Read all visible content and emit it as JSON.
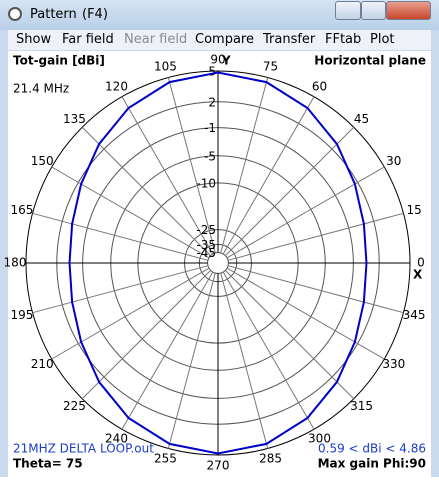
{
  "window": {
    "title": "Pattern",
    "shortcut": "(F4)",
    "menu": [
      {
        "label": "Show",
        "enabled": true
      },
      {
        "label": "Far field",
        "enabled": true
      },
      {
        "label": "Near field",
        "enabled": false
      },
      {
        "label": "Compare",
        "enabled": true
      },
      {
        "label": "Transfer",
        "enabled": true
      },
      {
        "label": "FFtab",
        "enabled": true
      },
      {
        "label": "Plot",
        "enabled": true
      }
    ]
  },
  "chart_data": {
    "type": "polar",
    "title": "Tot-gain [dBi]",
    "subtitle": "Horizontal plane",
    "frequency": "21.4 MHz",
    "file": "21MHZ DELTA LOOP.out",
    "range_text": "0.59 < dBi < 4.86",
    "theta_text": "Theta= 75",
    "max_gain_text": "Max gain Phi:90",
    "x_axis_label": "X",
    "y_axis_label": "Y",
    "scale": "arrl",
    "x": [
      0,
      15,
      30,
      45,
      60,
      75,
      90,
      105,
      120,
      135,
      150,
      165,
      180,
      195,
      210,
      225,
      240,
      255,
      270,
      285,
      300,
      315,
      330,
      345
    ],
    "xticks": [
      0,
      15,
      30,
      45,
      60,
      75,
      90,
      105,
      120,
      135,
      150,
      165,
      180,
      195,
      210,
      225,
      240,
      255,
      270,
      285,
      300,
      315,
      330,
      345
    ],
    "ylim": [
      -45,
      5
    ],
    "yticks": [
      5,
      2,
      -1,
      -5,
      -10,
      -25,
      -35,
      -45
    ],
    "series": [
      {
        "color": "#0000c8",
        "values": [
          0.59,
          0.88,
          1.66,
          2.73,
          3.79,
          4.57,
          4.86,
          4.57,
          3.79,
          2.73,
          1.66,
          0.88,
          0.59,
          0.88,
          1.66,
          2.73,
          3.79,
          4.57,
          4.86,
          4.57,
          3.79,
          2.73,
          1.66,
          0.88
        ]
      }
    ]
  }
}
